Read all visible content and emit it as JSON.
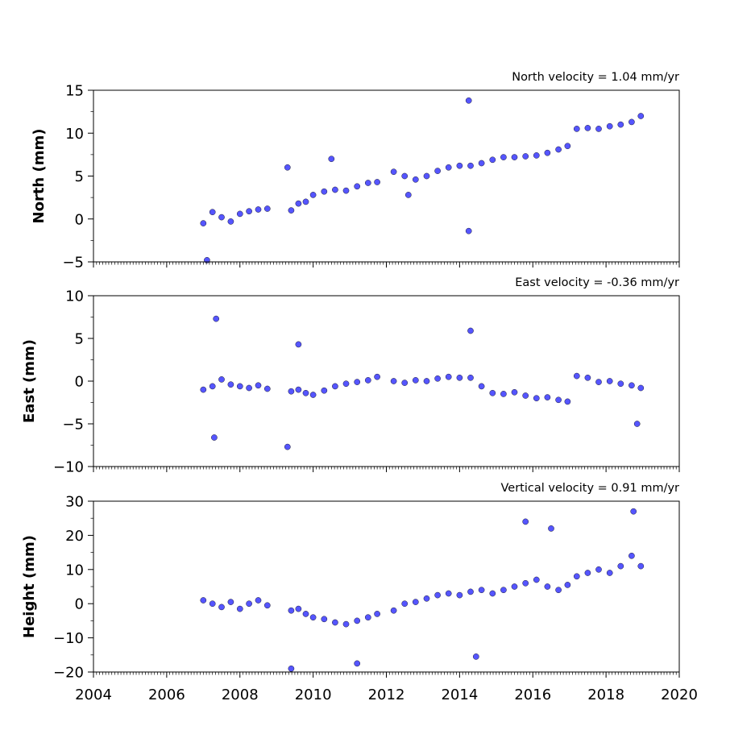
{
  "chart_data": [
    {
      "type": "scatter",
      "title": "North velocity = 1.04 mm/yr",
      "ylabel": "North (mm)",
      "xlim": [
        2004,
        2020
      ],
      "ylim": [
        -5,
        15
      ],
      "yticks": [
        -5,
        0,
        5,
        10,
        15
      ],
      "marker_color": "#5555ff",
      "series": [
        {
          "values": [
            [
              2007.0,
              -0.5
            ],
            [
              2007.25,
              0.8
            ],
            [
              2007.5,
              0.2
            ],
            [
              2007.75,
              -0.3
            ],
            [
              2008.0,
              0.6
            ],
            [
              2008.25,
              0.9
            ],
            [
              2008.5,
              1.1
            ],
            [
              2008.75,
              1.2
            ],
            [
              2009.4,
              1.0
            ],
            [
              2009.6,
              1.8
            ],
            [
              2009.8,
              2.0
            ],
            [
              2010.0,
              2.8
            ],
            [
              2010.3,
              3.2
            ],
            [
              2010.6,
              3.4
            ],
            [
              2010.9,
              3.3
            ],
            [
              2011.2,
              3.8
            ],
            [
              2011.5,
              4.2
            ],
            [
              2011.75,
              4.3
            ],
            [
              2012.2,
              5.5
            ],
            [
              2012.5,
              5.0
            ],
            [
              2012.8,
              4.6
            ],
            [
              2013.1,
              5.0
            ],
            [
              2013.4,
              5.6
            ],
            [
              2013.7,
              6.0
            ],
            [
              2014.0,
              6.2
            ],
            [
              2014.3,
              6.2
            ],
            [
              2014.6,
              6.5
            ],
            [
              2014.9,
              6.9
            ],
            [
              2015.2,
              7.2
            ],
            [
              2015.5,
              7.2
            ],
            [
              2015.8,
              7.3
            ],
            [
              2016.1,
              7.4
            ],
            [
              2016.4,
              7.7
            ],
            [
              2016.7,
              8.1
            ],
            [
              2016.95,
              8.5
            ],
            [
              2017.2,
              10.5
            ],
            [
              2017.5,
              10.6
            ],
            [
              2017.8,
              10.5
            ],
            [
              2018.1,
              10.8
            ],
            [
              2018.4,
              11.0
            ],
            [
              2018.7,
              11.3
            ],
            [
              2018.95,
              12.0
            ],
            [
              2014.25,
              13.8
            ],
            [
              2014.25,
              -1.4
            ],
            [
              2009.3,
              6.0
            ],
            [
              2007.1,
              -4.8
            ],
            [
              2010.5,
              7.0
            ],
            [
              2012.6,
              2.8
            ]
          ]
        }
      ]
    },
    {
      "type": "scatter",
      "title": "East velocity = -0.36 mm/yr",
      "ylabel": "East (mm)",
      "xlim": [
        2004,
        2020
      ],
      "ylim": [
        -10,
        10
      ],
      "yticks": [
        -10,
        -5,
        0,
        5,
        10
      ],
      "marker_color": "#5555ff",
      "series": [
        {
          "values": [
            [
              2007.0,
              -1.0
            ],
            [
              2007.25,
              -0.6
            ],
            [
              2007.5,
              0.2
            ],
            [
              2007.75,
              -0.4
            ],
            [
              2008.0,
              -0.6
            ],
            [
              2008.25,
              -0.8
            ],
            [
              2008.5,
              -0.5
            ],
            [
              2008.75,
              -0.9
            ],
            [
              2009.4,
              -1.2
            ],
            [
              2009.6,
              -1.0
            ],
            [
              2009.8,
              -1.4
            ],
            [
              2010.0,
              -1.6
            ],
            [
              2010.3,
              -1.1
            ],
            [
              2010.6,
              -0.6
            ],
            [
              2010.9,
              -0.3
            ],
            [
              2011.2,
              -0.1
            ],
            [
              2011.5,
              0.1
            ],
            [
              2011.75,
              0.5
            ],
            [
              2012.2,
              0.0
            ],
            [
              2012.5,
              -0.2
            ],
            [
              2012.8,
              0.1
            ],
            [
              2013.1,
              0.0
            ],
            [
              2013.4,
              0.3
            ],
            [
              2013.7,
              0.5
            ],
            [
              2014.0,
              0.4
            ],
            [
              2014.3,
              0.4
            ],
            [
              2014.6,
              -0.6
            ],
            [
              2014.9,
              -1.4
            ],
            [
              2015.2,
              -1.5
            ],
            [
              2015.5,
              -1.3
            ],
            [
              2015.8,
              -1.7
            ],
            [
              2016.1,
              -2.0
            ],
            [
              2016.4,
              -1.9
            ],
            [
              2016.7,
              -2.2
            ],
            [
              2016.95,
              -2.4
            ],
            [
              2017.2,
              0.6
            ],
            [
              2017.5,
              0.4
            ],
            [
              2017.8,
              -0.1
            ],
            [
              2018.1,
              0.0
            ],
            [
              2018.4,
              -0.3
            ],
            [
              2018.7,
              -0.5
            ],
            [
              2018.95,
              -0.8
            ],
            [
              2007.35,
              7.3
            ],
            [
              2007.3,
              -6.6
            ],
            [
              2009.3,
              -7.7
            ],
            [
              2014.3,
              5.9
            ],
            [
              2009.6,
              4.3
            ],
            [
              2018.85,
              -5.0
            ]
          ]
        }
      ]
    },
    {
      "type": "scatter",
      "title": "Vertical velocity = 0.91 mm/yr",
      "ylabel": "Height (mm)",
      "xlabel": "",
      "xlim": [
        2004,
        2020
      ],
      "ylim": [
        -20,
        30
      ],
      "yticks": [
        -20,
        -10,
        0,
        10,
        20,
        30
      ],
      "xticks": [
        2004,
        2006,
        2008,
        2010,
        2012,
        2014,
        2016,
        2018,
        2020
      ],
      "marker_color": "#5555ff",
      "series": [
        {
          "values": [
            [
              2007.0,
              1.0
            ],
            [
              2007.25,
              0.0
            ],
            [
              2007.5,
              -1.0
            ],
            [
              2007.75,
              0.5
            ],
            [
              2008.0,
              -1.5
            ],
            [
              2008.25,
              0.0
            ],
            [
              2008.5,
              1.0
            ],
            [
              2008.75,
              -0.5
            ],
            [
              2009.4,
              -2.0
            ],
            [
              2009.6,
              -1.5
            ],
            [
              2009.8,
              -3.0
            ],
            [
              2010.0,
              -4.0
            ],
            [
              2010.3,
              -4.5
            ],
            [
              2010.6,
              -5.5
            ],
            [
              2010.9,
              -6.0
            ],
            [
              2011.2,
              -5.0
            ],
            [
              2011.5,
              -4.0
            ],
            [
              2011.75,
              -3.0
            ],
            [
              2012.2,
              -2.0
            ],
            [
              2012.5,
              0.0
            ],
            [
              2012.8,
              0.5
            ],
            [
              2013.1,
              1.5
            ],
            [
              2013.4,
              2.5
            ],
            [
              2013.7,
              3.0
            ],
            [
              2014.0,
              2.5
            ],
            [
              2014.3,
              3.5
            ],
            [
              2014.6,
              4.0
            ],
            [
              2014.9,
              3.0
            ],
            [
              2015.2,
              4.0
            ],
            [
              2015.5,
              5.0
            ],
            [
              2015.8,
              6.0
            ],
            [
              2016.1,
              7.0
            ],
            [
              2016.4,
              5.0
            ],
            [
              2016.7,
              4.0
            ],
            [
              2016.95,
              5.5
            ],
            [
              2017.2,
              8.0
            ],
            [
              2017.5,
              9.0
            ],
            [
              2017.8,
              10.0
            ],
            [
              2018.1,
              9.0
            ],
            [
              2018.4,
              11.0
            ],
            [
              2018.7,
              14.0
            ],
            [
              2018.95,
              11.0
            ],
            [
              2018.75,
              27.0
            ],
            [
              2015.8,
              24.0
            ],
            [
              2009.4,
              -19.0
            ],
            [
              2011.2,
              -17.5
            ],
            [
              2014.45,
              -15.5
            ],
            [
              2016.5,
              22.0
            ]
          ]
        }
      ]
    }
  ]
}
